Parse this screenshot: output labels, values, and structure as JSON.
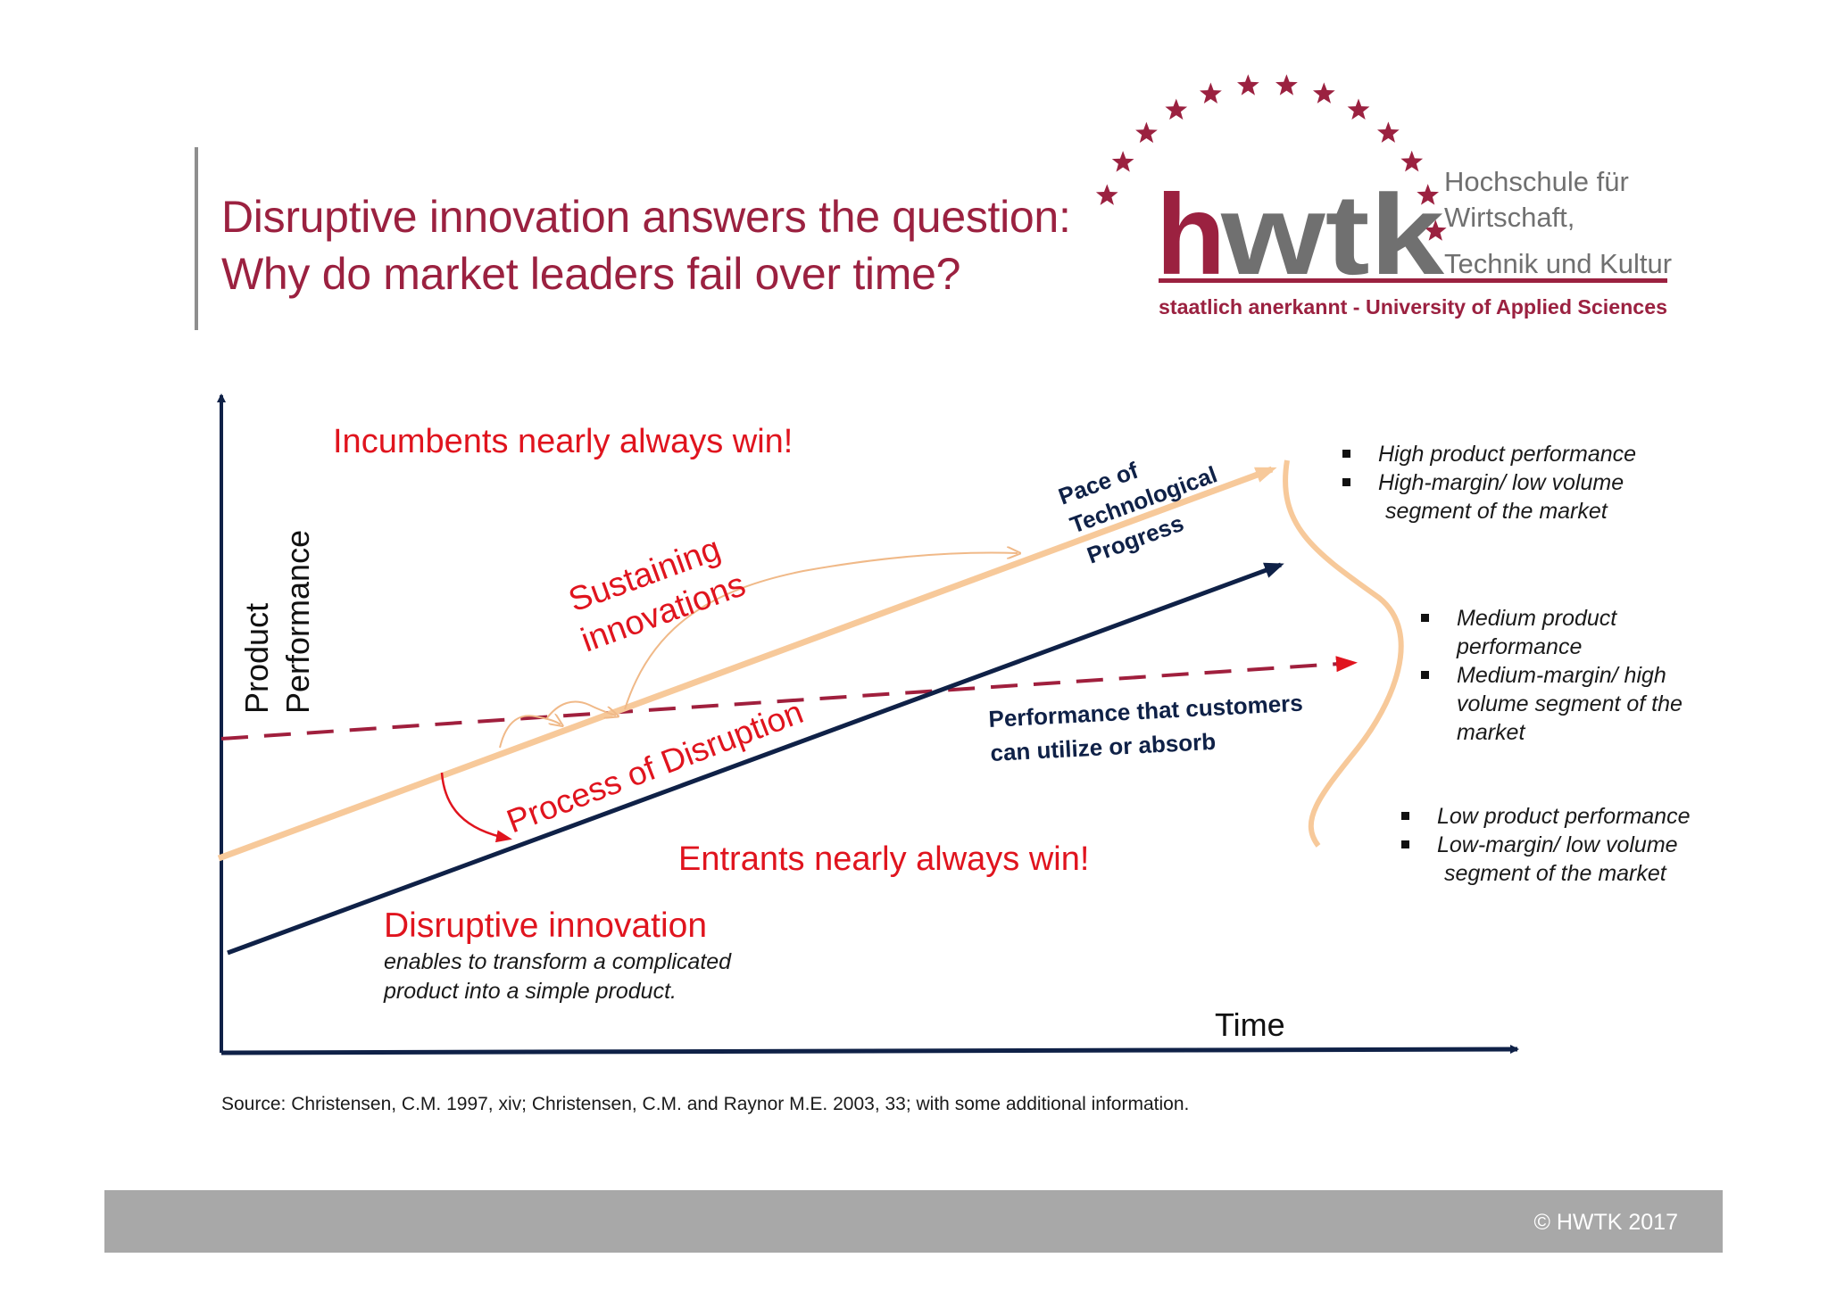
{
  "title": {
    "line1": "Disruptive innovation answers the question:",
    "line2": "Why do market leaders fail over time?"
  },
  "logo": {
    "wordmark_h": "h",
    "wordmark_wtk": "wtk",
    "line1": "Hochschule für",
    "line2": "Wirtschaft,",
    "line3": "Technik und Kultur",
    "tagline": "staatlich anerkannt - University of Applied Sciences",
    "brand_color": "#9b2140",
    "gray_color": "#707070",
    "star_count": 13
  },
  "diagram": {
    "y_axis_label_1": "Product",
    "y_axis_label_2": "Performance",
    "x_axis_label": "Time",
    "incumbents": "Incumbents nearly always win!",
    "entrants": "Entrants nearly always win!",
    "sustaining_1": "Sustaining",
    "sustaining_2": "innovations",
    "pace_1": "Pace of",
    "pace_2": "Technological",
    "pace_3": "Progress",
    "process": "Process of Disruption",
    "absorb_1": "Performance that customers",
    "absorb_2": "can utilize or absorb",
    "disruptive_title": "Disruptive innovation",
    "disruptive_desc_1": "enables to transform a complicated",
    "disruptive_desc_2": "product into a simple product.",
    "colors": {
      "technology_line": "#f7c99a",
      "disruptive_line": "#0f2147",
      "absorb_line": "#a01f3d",
      "annotation_red": "#e0141e"
    },
    "segments": {
      "high": {
        "items": [
          "High product performance",
          "High-margin/ low volume"
        ],
        "continuation": "segment of the market"
      },
      "medium": {
        "items": [
          "Medium product performance",
          "Medium-margin/ high volume segment of the market"
        ]
      },
      "low": {
        "items": [
          "Low product performance",
          "Low-margin/ low volume"
        ],
        "continuation": "segment of the market"
      }
    }
  },
  "source": "Source: Christensen, C.M. 1997, xiv; Christensen, C.M. and Raynor M.E. 2003, 33; with some additional information.",
  "footer": "© HWTK 2017"
}
